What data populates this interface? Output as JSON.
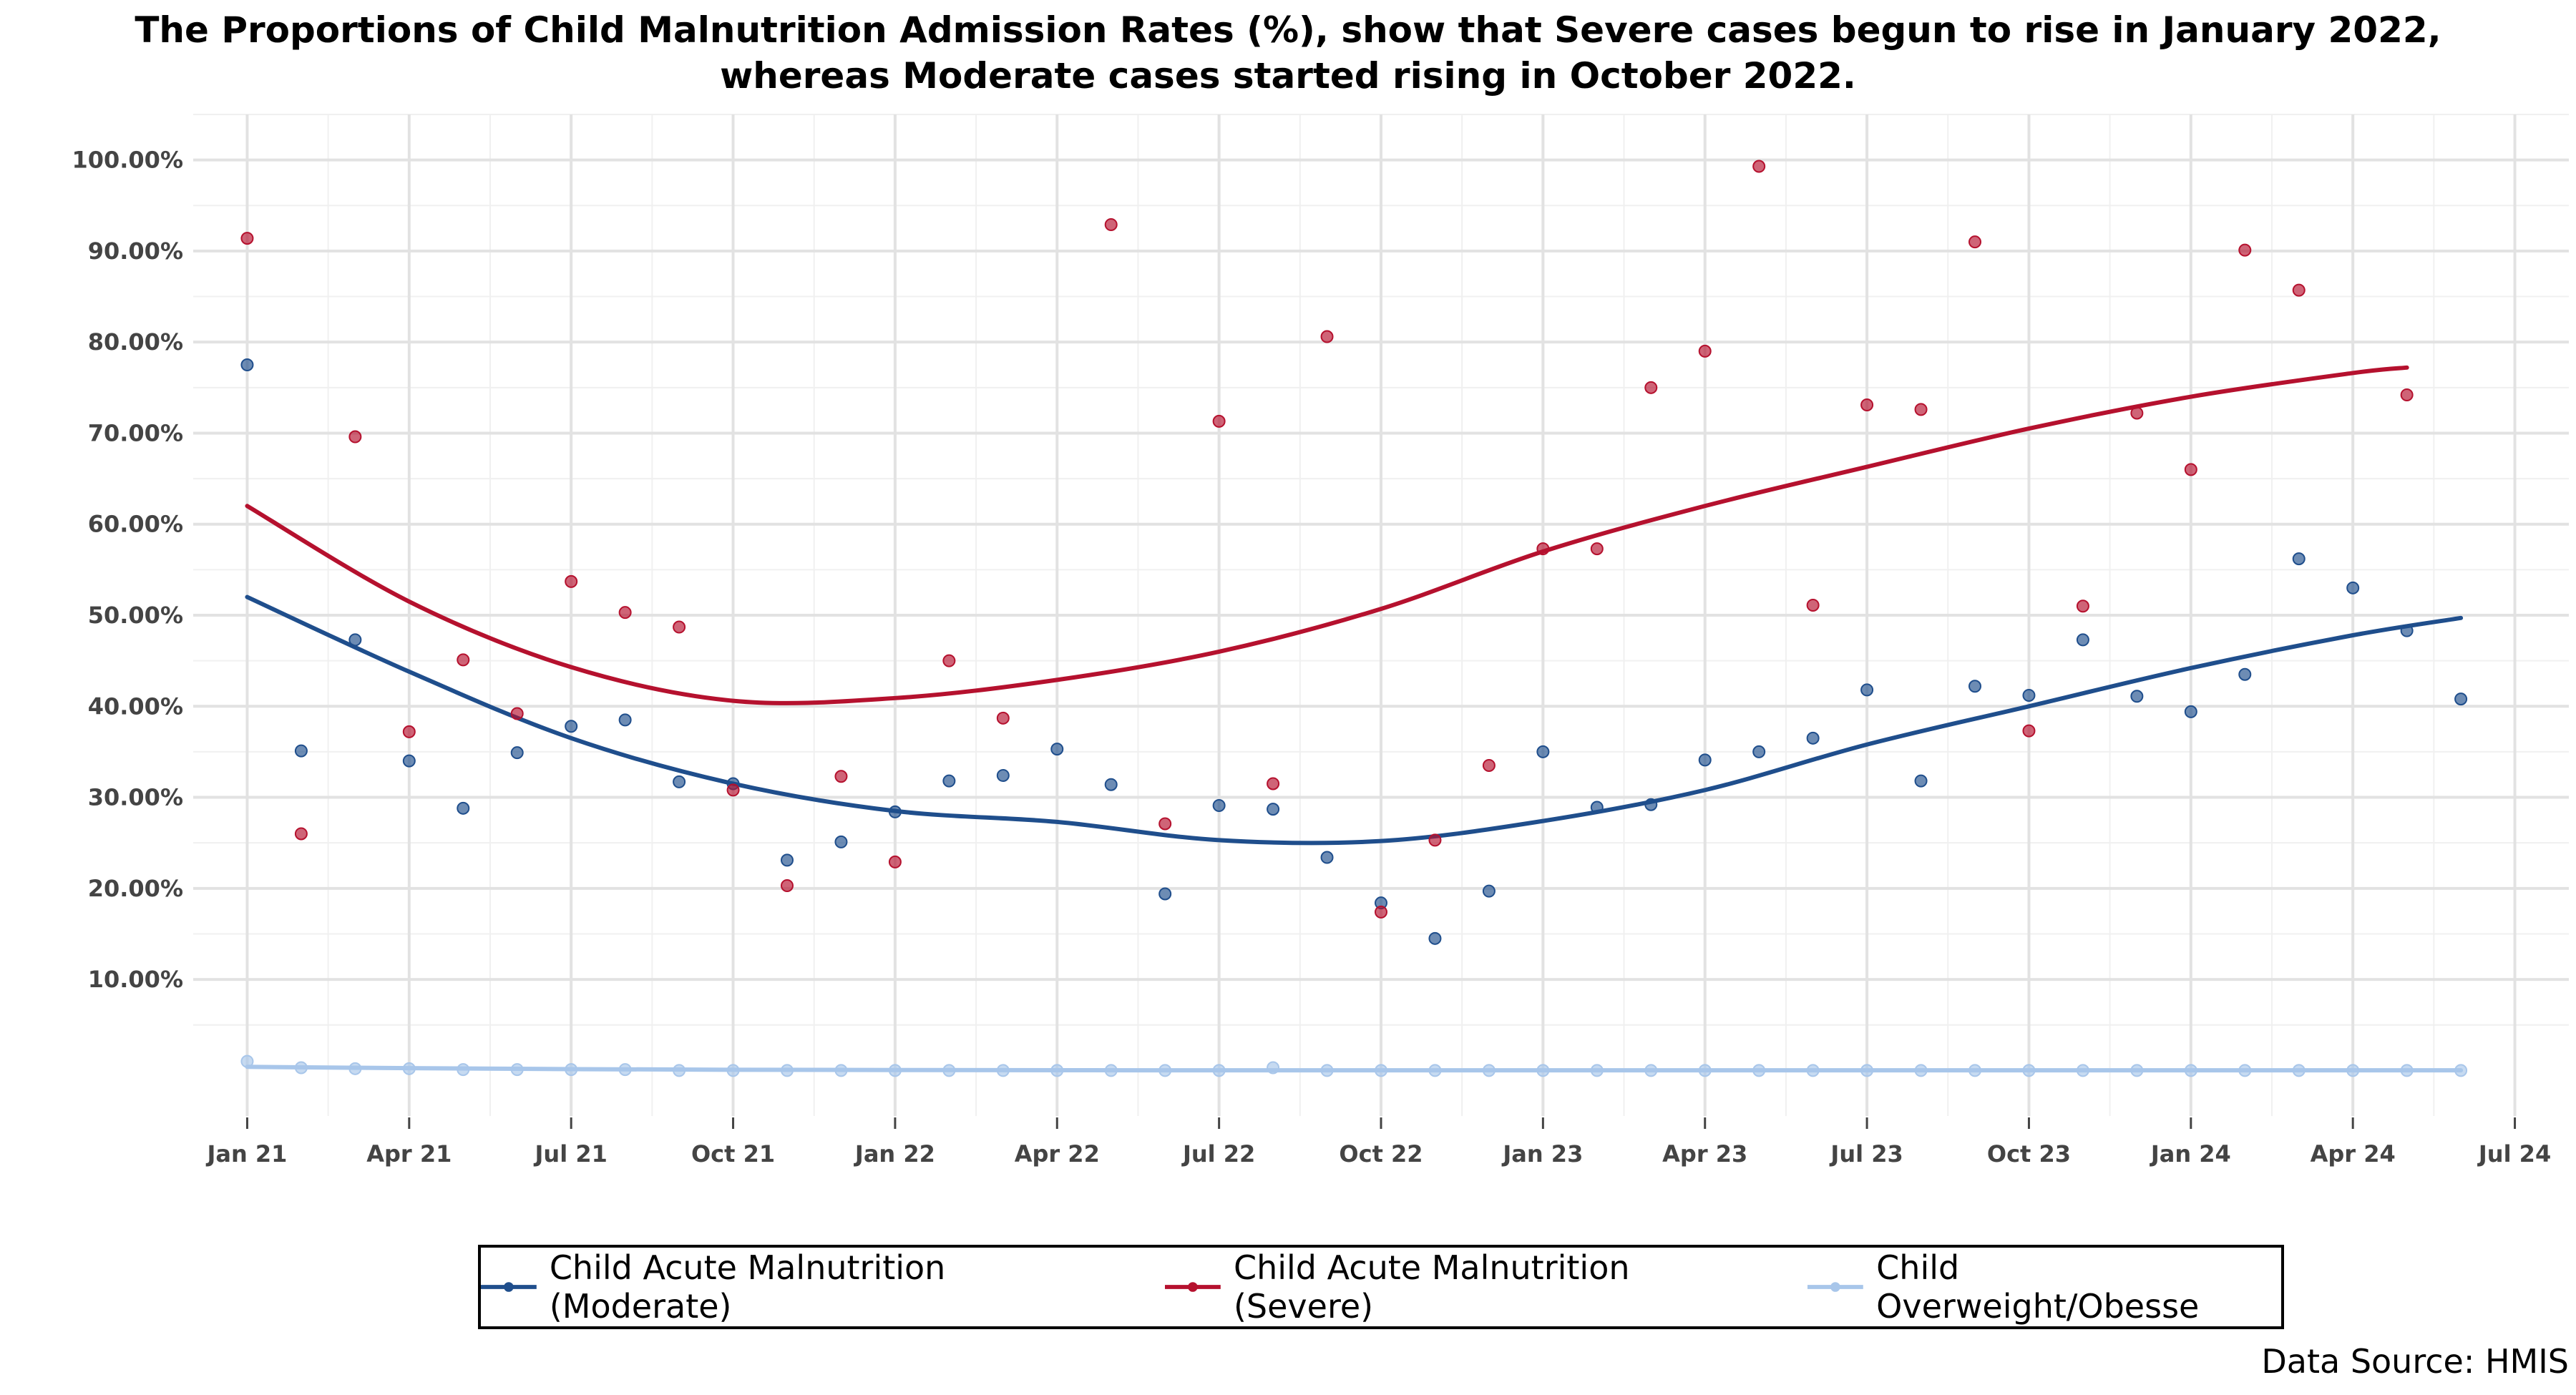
{
  "chart_data": {
    "type": "scatter",
    "title": "The Proportions of Child Malnutrition Admission Rates (%), show that Severe cases begun to rise in January 2022, whereas Moderate cases started rising in October 2022.",
    "title_lines": [
      "The Proportions of Child Malnutrition Admission Rates (%), show that Severe cases begun to rise in January 2022,",
      "whereas Moderate cases started rising in October 2022."
    ],
    "xlabel": "",
    "ylabel": "",
    "x": [
      "2021-01",
      "2021-02",
      "2021-03",
      "2021-04",
      "2021-05",
      "2021-06",
      "2021-07",
      "2021-08",
      "2021-09",
      "2021-10",
      "2021-11",
      "2021-12",
      "2022-01",
      "2022-02",
      "2022-03",
      "2022-04",
      "2022-05",
      "2022-06",
      "2022-07",
      "2022-08",
      "2022-09",
      "2022-10",
      "2022-11",
      "2022-12",
      "2023-01",
      "2023-02",
      "2023-03",
      "2023-04",
      "2023-05",
      "2023-06",
      "2023-07",
      "2023-08",
      "2023-09",
      "2023-10",
      "2023-11",
      "2023-12",
      "2024-01",
      "2024-02",
      "2024-03",
      "2024-04",
      "2024-05",
      "2024-06"
    ],
    "x_tick_labels": [
      "Jan 21",
      "Apr 21",
      "Jul 21",
      "Oct 21",
      "Jan 22",
      "Apr 22",
      "Jul 22",
      "Oct 22",
      "Jan 23",
      "Apr 23",
      "Jul 23",
      "Oct 23",
      "Jan 24",
      "Apr 24",
      "Jul 24"
    ],
    "x_tick_months": [
      "2021-01",
      "2021-04",
      "2021-07",
      "2021-10",
      "2022-01",
      "2022-04",
      "2022-07",
      "2022-10",
      "2023-01",
      "2023-04",
      "2023-07",
      "2023-10",
      "2024-01",
      "2024-04",
      "2024-07"
    ],
    "x_range": [
      "2020-12",
      "2024-08"
    ],
    "y_tick_labels": [
      "10.00%",
      "20.00%",
      "30.00%",
      "40.00%",
      "50.00%",
      "60.00%",
      "70.00%",
      "80.00%",
      "90.00%",
      "100.00%"
    ],
    "y_tick_values": [
      10,
      20,
      30,
      40,
      50,
      60,
      70,
      80,
      90,
      100
    ],
    "ylim": [
      -5,
      105
    ],
    "grid": true,
    "legend_position": "bottom",
    "series": [
      {
        "name": "Child Acute Malnutrition (Moderate)",
        "color": "#1f4e8c",
        "values": [
          77.5,
          35.1,
          47.3,
          34.0,
          28.8,
          34.9,
          37.8,
          38.5,
          31.7,
          31.5,
          23.1,
          25.1,
          28.4,
          31.8,
          32.4,
          35.3,
          31.4,
          19.4,
          29.1,
          28.7,
          23.4,
          18.4,
          14.5,
          19.7,
          35.0,
          28.9,
          29.2,
          34.1,
          35.0,
          36.5,
          41.8,
          31.8,
          42.2,
          41.2,
          47.3,
          41.1,
          39.4,
          43.5,
          56.2,
          53.0,
          48.3,
          40.8
        ],
        "trend_x": [
          "2021-01",
          "2021-04",
          "2021-07",
          "2021-10",
          "2022-01",
          "2022-04",
          "2022-07",
          "2022-10",
          "2023-01",
          "2023-04",
          "2023-07",
          "2023-10",
          "2024-01",
          "2024-04",
          "2024-06"
        ],
        "trend": [
          52.0,
          43.8,
          36.5,
          31.5,
          28.5,
          27.3,
          25.3,
          25.2,
          27.4,
          30.8,
          35.8,
          40.0,
          44.2,
          47.8,
          49.7
        ]
      },
      {
        "name": "Child Acute Malnutrition (Severe)",
        "color": "#b5112e",
        "values": [
          91.4,
          26.0,
          69.6,
          37.2,
          45.1,
          39.2,
          53.7,
          50.3,
          48.7,
          30.8,
          20.3,
          32.3,
          22.9,
          45.0,
          38.7,
          null,
          92.9,
          27.1,
          71.3,
          31.5,
          80.6,
          17.4,
          25.3,
          33.5,
          57.3,
          57.3,
          75.0,
          79.0,
          99.3,
          51.1,
          73.1,
          72.6,
          91.0,
          37.3,
          51.0,
          72.2,
          66.0,
          90.1,
          85.7,
          null,
          74.2,
          null
        ],
        "trend_x": [
          "2021-01",
          "2021-04",
          "2021-07",
          "2021-10",
          "2022-01",
          "2022-04",
          "2022-07",
          "2022-10",
          "2023-01",
          "2023-04",
          "2023-07",
          "2023-10",
          "2024-01",
          "2024-04",
          "2024-05"
        ],
        "trend": [
          62.0,
          51.5,
          44.3,
          40.6,
          40.9,
          42.9,
          46.0,
          50.7,
          57.0,
          62.0,
          66.3,
          70.5,
          74.0,
          76.6,
          77.2
        ]
      },
      {
        "name": "Child Overweight/Obesse",
        "color": "#a8c6ea",
        "values": [
          1.0,
          0.3,
          0.2,
          0.2,
          0.1,
          0.1,
          0.1,
          0.1,
          0.0,
          0.0,
          0.0,
          0.0,
          0.0,
          0.0,
          0.0,
          0.0,
          0.0,
          0.0,
          0.0,
          0.3,
          0.0,
          0.0,
          0.0,
          0.0,
          0.0,
          0.0,
          0.0,
          0.0,
          0.0,
          0.0,
          0.0,
          0.0,
          0.0,
          0.0,
          0.0,
          0.0,
          0.0,
          0.0,
          0.0,
          0.0,
          0.0,
          0.0
        ],
        "trend_x": [
          "2021-01",
          "2021-04",
          "2021-07",
          "2021-10",
          "2022-01",
          "2022-04",
          "2022-07",
          "2022-10",
          "2023-01",
          "2023-04",
          "2023-07",
          "2023-10",
          "2024-01",
          "2024-04",
          "2024-06"
        ],
        "trend": [
          0.4,
          0.25,
          0.15,
          0.08,
          0.05,
          0.03,
          0.02,
          0.02,
          0.02,
          0.02,
          0.02,
          0.02,
          0.02,
          0.02,
          0.02
        ]
      }
    ]
  },
  "source_note": "Data Source: HMIS"
}
